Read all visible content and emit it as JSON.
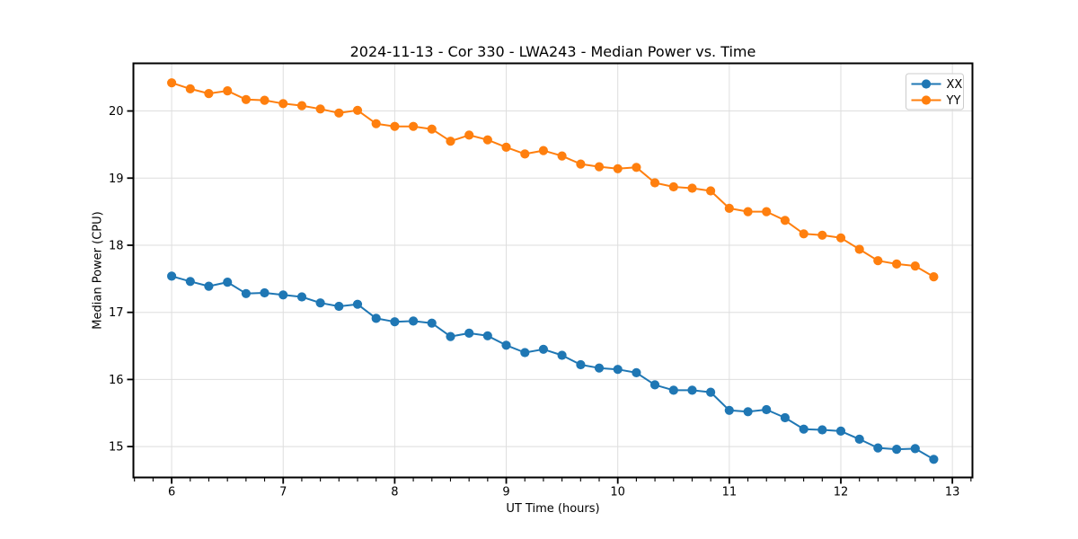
{
  "chart_data": {
    "type": "line",
    "title": "2024-11-13 - Cor 330 - LWA243 - Median Power vs. Time",
    "xlabel": "UT Time (hours)",
    "ylabel": "Median Power (CPU)",
    "xlim": [
      5.657,
      13.18
    ],
    "ylim": [
      14.54,
      20.71
    ],
    "xticks": [
      6,
      7,
      8,
      9,
      10,
      11,
      12,
      13
    ],
    "yticks": [
      15,
      16,
      17,
      18,
      19,
      20
    ],
    "x_minor_step_sixths": 1,
    "grid": true,
    "legend_position": "upper right",
    "x": [
      6.0,
      6.167,
      6.333,
      6.5,
      6.667,
      6.833,
      7.0,
      7.167,
      7.333,
      7.5,
      7.667,
      7.833,
      8.0,
      8.167,
      8.333,
      8.5,
      8.667,
      8.833,
      9.0,
      9.167,
      9.333,
      9.5,
      9.667,
      9.833,
      10.0,
      10.167,
      10.333,
      10.5,
      10.667,
      10.833,
      11.0,
      11.167,
      11.333,
      11.5,
      11.667,
      11.833,
      12.0,
      12.167,
      12.333,
      12.5,
      12.667,
      12.833
    ],
    "series": [
      {
        "name": "XX",
        "color": "#1f77b4",
        "values": [
          17.54,
          17.46,
          17.39,
          17.45,
          17.28,
          17.29,
          17.26,
          17.23,
          17.14,
          17.09,
          17.12,
          16.91,
          16.86,
          16.87,
          16.84,
          16.64,
          16.69,
          16.65,
          16.51,
          16.4,
          16.45,
          16.36,
          16.22,
          16.17,
          16.15,
          16.1,
          15.92,
          15.84,
          15.84,
          15.81,
          15.54,
          15.52,
          15.55,
          15.43,
          15.26,
          15.25,
          15.23,
          15.11,
          14.98,
          14.96,
          14.97,
          14.81
        ]
      },
      {
        "name": "YY",
        "color": "#ff7f0e",
        "values": [
          20.42,
          20.33,
          20.26,
          20.3,
          20.17,
          20.16,
          20.11,
          20.08,
          20.03,
          19.97,
          20.01,
          19.81,
          19.77,
          19.77,
          19.73,
          19.55,
          19.64,
          19.57,
          19.46,
          19.36,
          19.41,
          19.33,
          19.21,
          19.17,
          19.14,
          19.16,
          18.93,
          18.87,
          18.85,
          18.81,
          18.55,
          18.5,
          18.5,
          18.37,
          18.17,
          18.15,
          18.11,
          17.94,
          17.77,
          17.72,
          17.69,
          17.53
        ]
      }
    ],
    "style": {
      "grid_color": "#dedede",
      "spine_color": "#000000",
      "tick_label_color": "#000000",
      "legend_border_color": "#cccccc",
      "background": "#ffffff"
    }
  }
}
